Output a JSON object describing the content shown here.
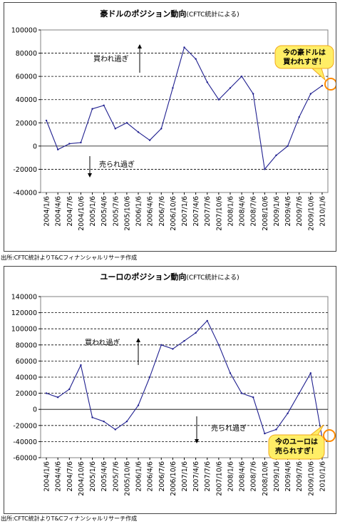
{
  "source_note": "出所:CFTC統計よりT&Cフィナンシャルリサーチ作成",
  "colors": {
    "line": "#1f1f8f",
    "grid": "#000000",
    "callout_fill": "#ffee66",
    "callout_stroke": "#f2a81d",
    "circle": "#ff8a00"
  },
  "chart_data": [
    {
      "type": "line",
      "title": "豪ドルのポジション動向",
      "title_note": "(CFTC統計による)",
      "ylim": [
        -40000,
        100000
      ],
      "yticks": [
        "100000",
        "80000",
        "60000",
        "40000",
        "20000",
        "0",
        "-20000",
        "-40000"
      ],
      "ytick_values": [
        100000,
        80000,
        60000,
        40000,
        20000,
        0,
        -20000,
        -40000
      ],
      "grid": "dashed horizontal",
      "x": [
        "2004/1/6",
        "2004/4/6",
        "2004/7/6",
        "2004/10/6",
        "2005/1/6",
        "2005/4/6",
        "2005/7/6",
        "2005/10/6",
        "2006/1/6",
        "2006/4/6",
        "2006/7/6",
        "2006/10/6",
        "2007/1/6",
        "2007/4/6",
        "2007/7/6",
        "2007/10/6",
        "2008/1/6",
        "2008/4/6",
        "2008/7/6",
        "2008/10/6",
        "2009/1/6",
        "2009/4/6",
        "2009/7/6",
        "2009/10/6",
        "2010/1/6"
      ],
      "values": [
        22000,
        -3000,
        2000,
        3000,
        32000,
        35000,
        15000,
        20000,
        12000,
        5000,
        15000,
        50000,
        85000,
        75000,
        55000,
        40000,
        50000,
        60000,
        45000,
        -20000,
        -8000,
        0,
        25000,
        45000,
        52000
      ],
      "annotations": {
        "overbought": "買われ過ぎ",
        "oversold": "売られ過ぎ",
        "callout": [
          "今の豪ドルは",
          "買われすぎ！"
        ]
      }
    },
    {
      "type": "line",
      "title": "ユーロのポジション動向",
      "title_note": "(CFTC統計による)",
      "ylim": [
        -60000,
        140000
      ],
      "yticks": [
        "140000",
        "120000",
        "100000",
        "80000",
        "60000",
        "40000",
        "20000",
        "0",
        "-20000",
        "-40000",
        "-60000"
      ],
      "ytick_values": [
        140000,
        120000,
        100000,
        80000,
        60000,
        40000,
        20000,
        0,
        -20000,
        -40000,
        -60000
      ],
      "grid": "dashed horizontal",
      "x": [
        "2004/1/6",
        "2004/4/6",
        "2004/7/6",
        "2004/10/6",
        "2005/1/6",
        "2005/4/6",
        "2005/7/6",
        "2005/10/6",
        "2006/1/6",
        "2006/4/6",
        "2006/7/6",
        "2006/10/6",
        "2007/1/6",
        "2007/4/6",
        "2007/7/6",
        "2007/10/6",
        "2008/1/6",
        "2008/4/6",
        "2008/7/6",
        "2008/10/6",
        "2009/1/6",
        "2009/4/6",
        "2009/7/6",
        "2009/10/6",
        "2010/1/6"
      ],
      "values": [
        20000,
        15000,
        25000,
        55000,
        -10000,
        -15000,
        -25000,
        -15000,
        5000,
        40000,
        80000,
        75000,
        85000,
        95000,
        110000,
        80000,
        45000,
        20000,
        15000,
        -30000,
        -25000,
        -5000,
        20000,
        45000,
        -35000
      ],
      "annotations": {
        "overbought": "買われ過ぎ",
        "oversold": "売られ過ぎ",
        "callout": [
          "今のユーロは",
          "売られすぎ！"
        ]
      }
    }
  ]
}
